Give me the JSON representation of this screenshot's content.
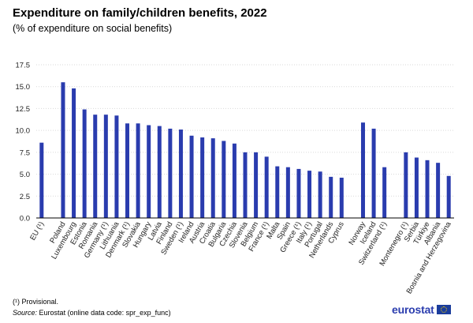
{
  "page": {
    "title": "Expenditure on family/children benefits, 2022",
    "subtitle": "(% of expenditure  on social benefits)",
    "footnote": "(¹) Provisional.",
    "source_label": "Source:",
    "source_text": "Eurostat (online data code: spr_exp_func)",
    "logo_text": "eurostat",
    "logo_icon": "eu-flag-icon"
  },
  "colors": {
    "bar": "#2a3cae",
    "text": "#000000"
  },
  "chart_data": {
    "type": "bar",
    "title": "Expenditure on family/children benefits, 2022",
    "subtitle": "(% of expenditure  on social benefits)",
    "xlabel": "",
    "ylabel": "",
    "ylim": [
      0,
      17.5
    ],
    "yticks": [
      "0.0",
      "2.5",
      "5.0",
      "7.5",
      "10.0",
      "12.5",
      "15.0",
      "17.5"
    ],
    "ytick_values": [
      0,
      2.5,
      5,
      7.5,
      10,
      12.5,
      15,
      17.5
    ],
    "grid": true,
    "legend": "none",
    "categories": [
      "EU (¹)",
      "",
      "Poland",
      "Luxembourg",
      "Estonia",
      "Romania",
      "Germany (¹)",
      "Lithuania",
      "Denmark (¹)",
      "Slovakia",
      "Hungary",
      "Latvia",
      "Finland",
      "Sweden (¹)",
      "Ireland",
      "Austria",
      "Croatia",
      "Bulgaria",
      "Czechia",
      "Slovenia",
      "Belgium",
      "France (¹)",
      "Malta",
      "Spain",
      "Greece (¹)",
      "Italy (¹)",
      "Portugal",
      "Netherlands",
      "Cyprus",
      "",
      "Norway",
      "Iceland",
      "Switzerland (¹)",
      "",
      "Montenegro (¹)",
      "Serbia",
      "Türkiye",
      "Albania",
      "Bosnia and Herzegovina"
    ],
    "values": [
      8.6,
      null,
      15.5,
      14.8,
      12.4,
      11.8,
      11.8,
      11.7,
      10.8,
      10.8,
      10.6,
      10.5,
      10.2,
      10.1,
      9.4,
      9.2,
      9.1,
      8.8,
      8.5,
      7.5,
      7.5,
      7.0,
      5.9,
      5.8,
      5.6,
      5.4,
      5.3,
      4.7,
      4.6,
      null,
      10.9,
      10.2,
      5.8,
      null,
      7.5,
      6.9,
      6.6,
      6.3,
      4.8
    ]
  }
}
